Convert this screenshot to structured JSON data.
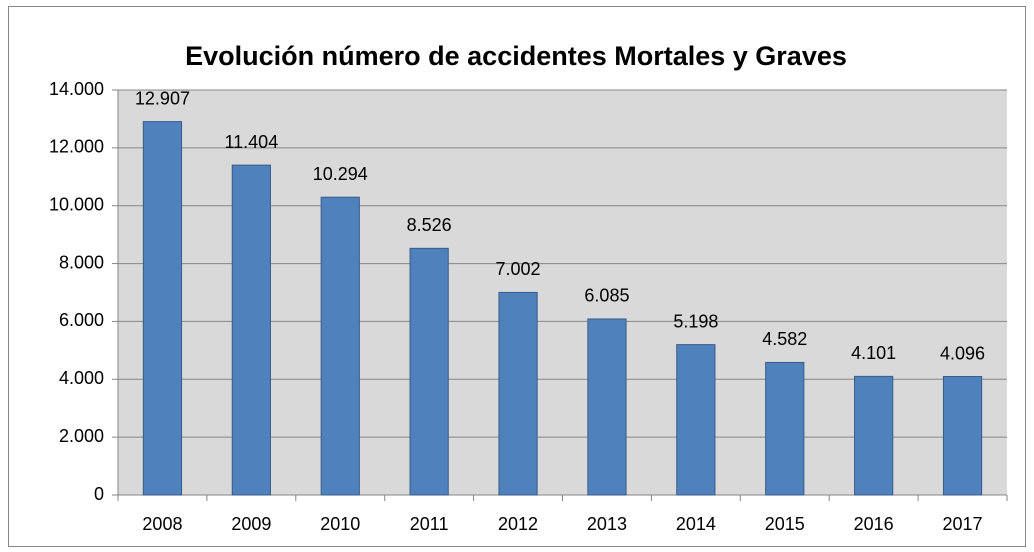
{
  "chart_data": {
    "type": "bar",
    "title": "Evolución número de accidentes Mortales y Graves",
    "categories": [
      "2008",
      "2009",
      "2010",
      "2011",
      "2012",
      "2013",
      "2014",
      "2015",
      "2016",
      "2017"
    ],
    "values": [
      12907,
      11404,
      10294,
      8526,
      7002,
      6085,
      5198,
      4582,
      4101,
      4096
    ],
    "value_labels": [
      "12.907",
      "11.404",
      "10.294",
      "8.526",
      "7.002",
      "6.085",
      "5.198",
      "4.582",
      "4.101",
      "4.096"
    ],
    "color": "#4f81bd",
    "ylim": [
      0,
      14000
    ],
    "yticks": [
      0,
      {
        "value": 2000,
        "label": "2.000"
      },
      {
        "value": 4000,
        "label": "4.000"
      },
      {
        "value": 6000,
        "label": "6.000"
      },
      {
        "value": 8000,
        "label": "8.000"
      },
      {
        "value": 10000,
        "label": "10.000"
      },
      {
        "value": 12000,
        "label": "12.000"
      },
      {
        "value": 14000,
        "label": "14.000"
      }
    ],
    "grid": true
  }
}
